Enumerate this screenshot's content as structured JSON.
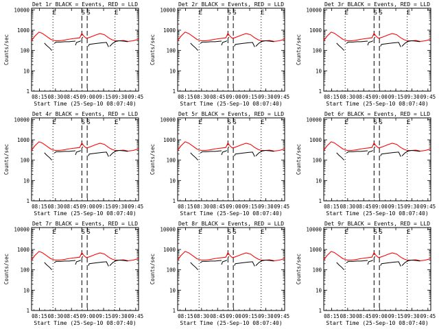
{
  "chart_data": {
    "type": "line",
    "layout": "3x3 grid",
    "y_scale": "log",
    "ylim": [
      1,
      12000
    ],
    "y_ticks": [
      {
        "value": 1,
        "label": "1"
      },
      {
        "value": 10,
        "label": "10"
      },
      {
        "value": 100,
        "label": "100"
      },
      {
        "value": 1000,
        "label": "1000"
      },
      {
        "value": 10000,
        "label": "10000"
      }
    ],
    "ylabel": "Counts/sec",
    "xlabel": "Start Time (25-Sep-10 08:07:40)",
    "xlim_minutes": [
      0,
      100
    ],
    "x_ticks": [
      {
        "value": 7.33,
        "label": "08:15"
      },
      {
        "value": 22.33,
        "label": "08:30"
      },
      {
        "value": 37.33,
        "label": "08:45"
      },
      {
        "value": 52.33,
        "label": "09:00"
      },
      {
        "value": 67.33,
        "label": "09:15"
      },
      {
        "value": 82.33,
        "label": "09:30"
      },
      {
        "value": 97.33,
        "label": "09:45"
      }
    ],
    "markers": [
      {
        "x": 20,
        "style": "dotted",
        "label": "E"
      },
      {
        "x": 47,
        "style": "dashed",
        "label": "S"
      },
      {
        "x": 52,
        "style": "dashed",
        "label": "S"
      },
      {
        "x": 78,
        "style": "dotted",
        "label": "E"
      }
    ],
    "series_colors": {
      "lld": "#ff0000",
      "events": "#000000"
    },
    "red_lld": {
      "x": [
        0,
        3,
        7,
        10,
        14,
        18,
        22,
        26,
        30,
        34,
        38,
        42,
        45,
        47,
        49,
        51,
        53,
        56,
        60,
        64,
        68,
        72,
        75,
        78,
        82,
        86,
        90,
        95,
        100
      ],
      "y": [
        300,
        500,
        800,
        700,
        500,
        350,
        300,
        300,
        320,
        350,
        380,
        400,
        420,
        700,
        500,
        400,
        420,
        480,
        580,
        680,
        600,
        420,
        340,
        300,
        300,
        310,
        280,
        300,
        360
      ]
    },
    "black_events_segments": [
      {
        "x": [
          12,
          14,
          17,
          19
        ],
        "y": [
          230,
          180,
          130,
          100
        ]
      },
      {
        "x": [
          21,
          23,
          27,
          31,
          35,
          38,
          41
        ],
        "y": [
          220,
          260,
          260,
          270,
          270,
          280,
          290
        ]
      },
      {
        "x": [
          41,
          42,
          45,
          46
        ],
        "y": [
          180,
          250,
          280,
          300
        ]
      },
      {
        "x": [
          47,
          48
        ],
        "y": [
          400,
          450
        ]
      },
      {
        "x": [
          53,
          54,
          60,
          66,
          70,
          72
        ],
        "y": [
          160,
          200,
          220,
          240,
          250,
          150
        ]
      },
      {
        "x": [
          73,
          76,
          79,
          82,
          86,
          90
        ],
        "y": [
          160,
          230,
          280,
          300,
          290,
          270
        ]
      }
    ],
    "panels": [
      {
        "title": "Det 1r BLACK = Events, RED = LLD"
      },
      {
        "title": "Det 2r BLACK = Events, RED = LLD"
      },
      {
        "title": "Det 3r BLACK = Events, RED = LLD"
      },
      {
        "title": "Det 4r BLACK = Events, RED = LLD"
      },
      {
        "title": "Det 5r BLACK = Events, RED = LLD"
      },
      {
        "title": "Det 6r BLACK = Events, RED = LLD"
      },
      {
        "title": "Det 7r BLACK = Events, RED = LLD"
      },
      {
        "title": "Det 8r BLACK = Events, RED = LLD"
      },
      {
        "title": "Det 9r BLACK = Events, RED = LLD"
      }
    ]
  }
}
